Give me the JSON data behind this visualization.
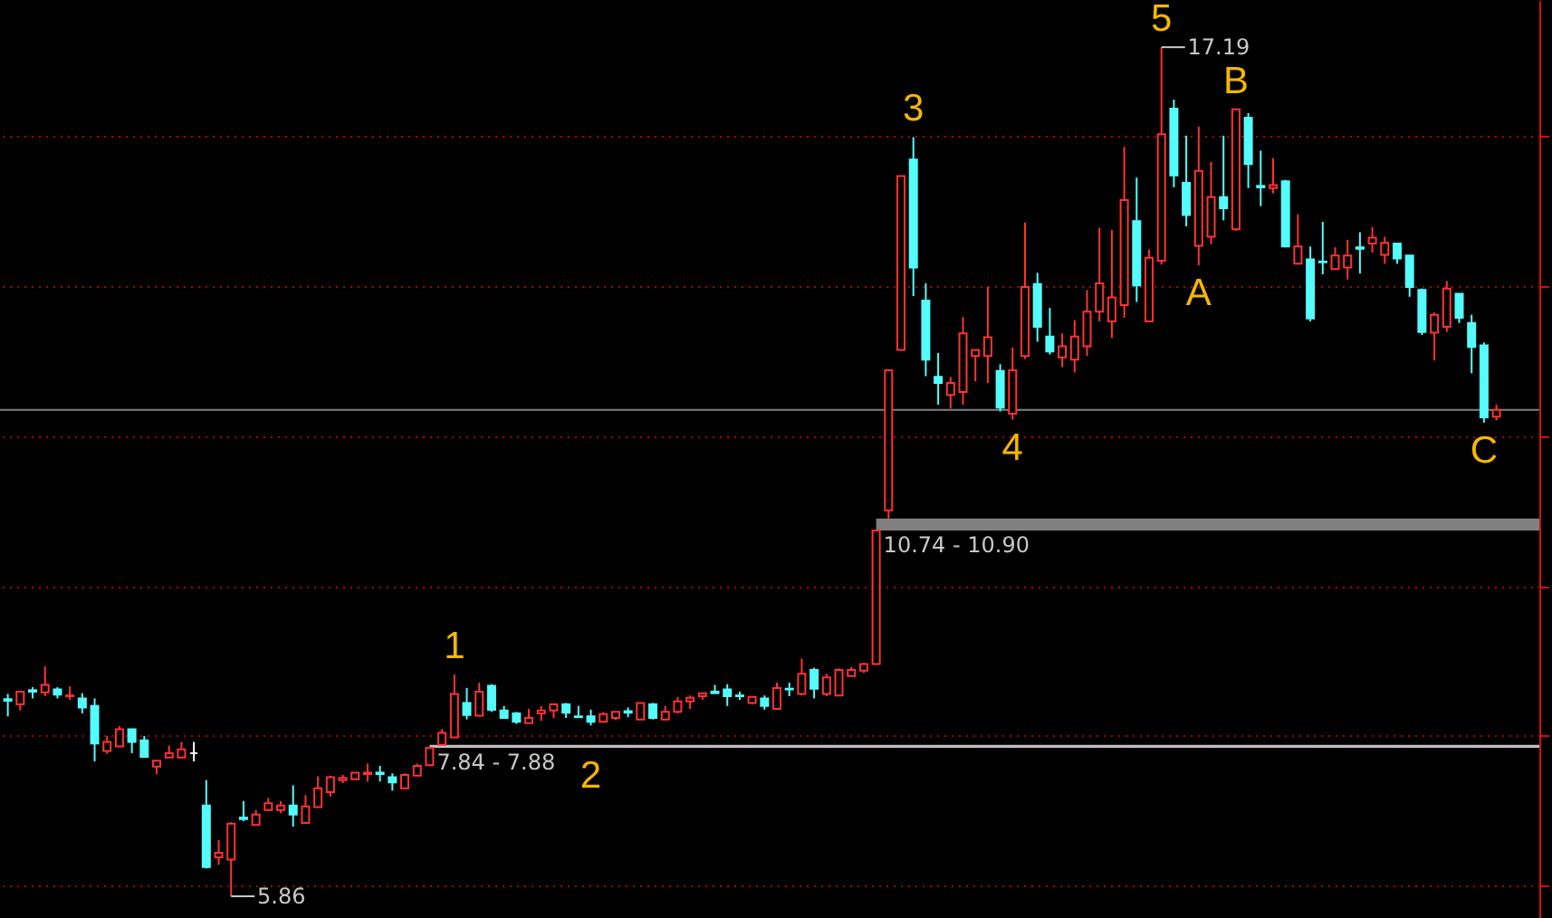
{
  "chart_data": {
    "type": "candlestick",
    "categories": [
      null,
      null,
      null,
      null,
      null,
      null,
      null,
      null,
      null,
      null,
      null,
      null,
      null,
      null,
      null,
      null,
      null,
      null,
      null,
      null,
      null,
      null,
      null,
      null,
      null,
      null,
      null,
      null,
      null,
      null,
      null,
      null,
      null,
      null,
      null,
      null,
      null,
      null,
      null,
      null,
      null,
      null,
      null,
      null,
      null,
      null,
      null,
      null,
      null,
      null,
      null,
      null,
      null,
      null,
      null,
      null,
      null,
      null,
      null,
      null,
      null,
      null,
      null,
      null,
      null,
      null,
      null,
      null,
      null,
      null,
      null,
      null,
      null,
      null,
      null,
      null,
      null,
      null,
      null,
      null,
      null,
      null,
      null,
      null,
      null,
      null,
      null,
      null,
      null,
      null,
      null,
      null,
      null,
      null,
      null,
      null,
      null,
      null,
      null,
      null,
      null,
      null,
      null,
      null,
      null,
      null,
      null,
      null,
      null,
      null,
      null,
      null,
      null,
      null,
      null,
      null,
      null,
      null,
      null,
      null,
      null
    ],
    "ohlc": [
      [
        8.49,
        8.56,
        8.26,
        8.47
      ],
      [
        8.42,
        8.59,
        8.34,
        8.59
      ],
      [
        8.61,
        8.65,
        8.5,
        8.59
      ],
      [
        8.58,
        8.93,
        8.53,
        8.68
      ],
      [
        8.62,
        8.65,
        8.5,
        8.55
      ],
      [
        8.53,
        8.66,
        8.48,
        8.54
      ],
      [
        8.5,
        8.57,
        8.3,
        8.38
      ],
      [
        8.4,
        8.5,
        7.66,
        7.9
      ],
      [
        7.8,
        8.0,
        7.76,
        7.92
      ],
      [
        7.86,
        8.13,
        7.86,
        8.09
      ],
      [
        8.09,
        8.09,
        7.77,
        7.92
      ],
      [
        7.94,
        8.0,
        7.71,
        7.72
      ],
      [
        7.59,
        7.67,
        7.49,
        7.67
      ],
      [
        7.71,
        7.87,
        7.71,
        7.77
      ],
      [
        7.71,
        7.92,
        7.71,
        7.82
      ],
      [
        7.77,
        7.92,
        7.66,
        7.77
      ],
      [
        7.07,
        7.41,
        6.23,
        6.25
      ],
      [
        6.38,
        6.61,
        6.28,
        6.44
      ],
      [
        6.35,
        6.85,
        5.86,
        6.83
      ],
      [
        6.91,
        7.13,
        6.86,
        6.89
      ],
      [
        6.81,
        7.01,
        6.81,
        6.95
      ],
      [
        7.01,
        7.17,
        7.01,
        7.1
      ],
      [
        7.01,
        7.13,
        6.97,
        7.07
      ],
      [
        7.07,
        7.34,
        6.79,
        6.95
      ],
      [
        6.84,
        7.21,
        6.84,
        7.06
      ],
      [
        7.05,
        7.46,
        7.05,
        7.3
      ],
      [
        7.25,
        7.47,
        7.19,
        7.45
      ],
      [
        7.41,
        7.48,
        7.37,
        7.44
      ],
      [
        7.42,
        7.51,
        7.42,
        7.51
      ],
      [
        7.49,
        7.63,
        7.39,
        7.51
      ],
      [
        7.51,
        7.6,
        7.39,
        7.49
      ],
      [
        7.45,
        7.5,
        7.27,
        7.38
      ],
      [
        7.3,
        7.5,
        7.3,
        7.48
      ],
      [
        7.47,
        7.63,
        7.47,
        7.6
      ],
      [
        7.61,
        7.84,
        7.61,
        7.84
      ],
      [
        7.88,
        8.09,
        7.88,
        8.04
      ],
      [
        7.98,
        8.82,
        7.98,
        8.56
      ],
      [
        8.44,
        8.64,
        8.22,
        8.28
      ],
      [
        8.27,
        8.71,
        8.27,
        8.59
      ],
      [
        8.67,
        8.69,
        8.32,
        8.35
      ],
      [
        8.34,
        8.4,
        8.24,
        8.24
      ],
      [
        8.3,
        8.32,
        8.16,
        8.19
      ],
      [
        8.17,
        8.36,
        8.17,
        8.24
      ],
      [
        8.3,
        8.4,
        8.2,
        8.34
      ],
      [
        8.34,
        8.42,
        8.24,
        8.42
      ],
      [
        8.42,
        8.44,
        8.24,
        8.31
      ],
      [
        8.26,
        8.4,
        8.25,
        8.25
      ],
      [
        8.26,
        8.35,
        8.14,
        8.19
      ],
      [
        8.19,
        8.32,
        8.19,
        8.29
      ],
      [
        8.24,
        8.32,
        8.21,
        8.32
      ],
      [
        8.33,
        8.38,
        8.25,
        8.31
      ],
      [
        8.22,
        8.44,
        8.22,
        8.44
      ],
      [
        8.42,
        8.44,
        8.22,
        8.24
      ],
      [
        8.22,
        8.4,
        8.22,
        8.32
      ],
      [
        8.32,
        8.52,
        8.3,
        8.46
      ],
      [
        8.46,
        8.54,
        8.36,
        8.51
      ],
      [
        8.53,
        8.57,
        8.48,
        8.57
      ],
      [
        8.59,
        8.68,
        8.57,
        8.57
      ],
      [
        8.62,
        8.69,
        8.4,
        8.53
      ],
      [
        8.54,
        8.59,
        8.48,
        8.53
      ],
      [
        8.44,
        8.52,
        8.42,
        8.52
      ],
      [
        8.5,
        8.54,
        8.35,
        8.4
      ],
      [
        8.36,
        8.71,
        8.36,
        8.64
      ],
      [
        8.63,
        8.71,
        8.53,
        8.62
      ],
      [
        8.56,
        9.03,
        8.54,
        8.83
      ],
      [
        8.88,
        8.91,
        8.5,
        8.63
      ],
      [
        8.56,
        8.83,
        8.53,
        8.78
      ],
      [
        8.54,
        8.9,
        8.54,
        8.88
      ],
      [
        8.8,
        8.92,
        8.8,
        8.88
      ],
      [
        8.87,
        8.98,
        8.84,
        8.96
      ],
      [
        8.96,
        10.74,
        8.95,
        10.74
      ],
      [
        11.01,
        12.88,
        10.9,
        12.88
      ],
      [
        13.15,
        15.47,
        13.15,
        15.47
      ],
      [
        15.69,
        15.99,
        13.87,
        14.25
      ],
      [
        13.81,
        14.04,
        12.8,
        13.02
      ],
      [
        12.79,
        13.11,
        12.42,
        12.71
      ],
      [
        12.55,
        12.79,
        12.37,
        12.71
      ],
      [
        12.59,
        13.59,
        12.42,
        13.37
      ],
      [
        13.07,
        13.15,
        12.73,
        13.15
      ],
      [
        13.07,
        13.99,
        12.71,
        13.32
      ],
      [
        12.87,
        12.96,
        12.33,
        12.38
      ],
      [
        12.3,
        13.18,
        12.22,
        12.88
      ],
      [
        13.07,
        14.85,
        13.03,
        13.99
      ],
      [
        14.03,
        14.18,
        13.26,
        13.46
      ],
      [
        13.33,
        13.71,
        13.09,
        13.13
      ],
      [
        13.05,
        13.37,
        12.92,
        13.2
      ],
      [
        13.02,
        13.55,
        12.85,
        13.33
      ],
      [
        13.2,
        13.95,
        13.07,
        13.66
      ],
      [
        13.66,
        14.78,
        13.53,
        14.04
      ],
      [
        13.53,
        14.75,
        13.31,
        13.85
      ],
      [
        13.75,
        15.86,
        13.58,
        15.15
      ],
      [
        14.87,
        15.45,
        13.79,
        14.01
      ],
      [
        13.53,
        14.49,
        13.53,
        14.38
      ],
      [
        14.34,
        17.19,
        14.29,
        16.03
      ],
      [
        16.37,
        16.49,
        15.32,
        15.48
      ],
      [
        15.38,
        16.01,
        14.8,
        14.95
      ],
      [
        14.54,
        16.13,
        14.28,
        15.54
      ],
      [
        14.66,
        15.66,
        14.56,
        15.19
      ],
      [
        15.19,
        16.01,
        14.88,
        15.04
      ],
      [
        14.76,
        16.36,
        14.74,
        16.36
      ],
      [
        16.25,
        16.31,
        15.31,
        15.63
      ],
      [
        15.34,
        15.81,
        15.07,
        15.32
      ],
      [
        15.31,
        15.71,
        15.24,
        15.35
      ],
      [
        15.4,
        15.42,
        14.52,
        14.53
      ],
      [
        14.3,
        14.96,
        14.3,
        14.53
      ],
      [
        14.36,
        14.53,
        13.53,
        13.57
      ],
      [
        14.33,
        14.86,
        14.16,
        14.32
      ],
      [
        14.23,
        14.52,
        14.23,
        14.41
      ],
      [
        14.25,
        14.62,
        14.09,
        14.41
      ],
      [
        14.52,
        14.72,
        14.17,
        14.5
      ],
      [
        14.57,
        14.79,
        14.45,
        14.65
      ],
      [
        14.42,
        14.66,
        14.3,
        14.58
      ],
      [
        14.57,
        14.57,
        14.3,
        14.37
      ],
      [
        14.41,
        14.41,
        13.86,
        13.99
      ],
      [
        13.95,
        13.97,
        13.35,
        13.39
      ],
      [
        13.38,
        13.65,
        13.01,
        13.62
      ],
      [
        13.46,
        14.07,
        13.39,
        13.97
      ],
      [
        13.9,
        13.9,
        13.51,
        13.58
      ],
      [
        13.51,
        13.62,
        12.84,
        13.19
      ],
      [
        13.21,
        13.25,
        12.18,
        12.25
      ],
      [
        12.26,
        12.42,
        12.21,
        12.35
      ]
    ],
    "colors": [
      "#54fcfc",
      "#ff3232",
      "#54fcfc",
      "#ff3232",
      "#54fcfc",
      "#ff3232",
      "#54fcfc",
      "#54fcfc",
      "#ff3232",
      "#ff3232",
      "#54fcfc",
      "#54fcfc",
      "#ff3232",
      "#ff3232",
      "#ff3232",
      "#ffffff",
      "#54fcfc",
      "#ff3232",
      "#ff3232",
      "#54fcfc",
      "#ff3232",
      "#ff3232",
      "#ff3232",
      "#54fcfc",
      "#ff3232",
      "#ff3232",
      "#ff3232",
      "#ff3232",
      "#ff3232",
      "#ff3232",
      "#54fcfc",
      "#54fcfc",
      "#ff3232",
      "#ff3232",
      "#ff3232",
      "#ff3232",
      "#ff3232",
      "#54fcfc",
      "#ff3232",
      "#54fcfc",
      "#54fcfc",
      "#54fcfc",
      "#ff3232",
      "#ff3232",
      "#ff3232",
      "#54fcfc",
      "#54fcfc",
      "#54fcfc",
      "#ff3232",
      "#ff3232",
      "#54fcfc",
      "#ff3232",
      "#54fcfc",
      "#ff3232",
      "#ff3232",
      "#ff3232",
      "#ff3232",
      "#54fcfc",
      "#54fcfc",
      "#54fcfc",
      "#ff3232",
      "#54fcfc",
      "#ff3232",
      "#54fcfc",
      "#ff3232",
      "#54fcfc",
      "#ff3232",
      "#ff3232",
      "#ff3232",
      "#ff3232",
      "#ff3232",
      "#ff3232",
      "#ff3232",
      "#54fcfc",
      "#54fcfc",
      "#54fcfc",
      "#ff3232",
      "#ff3232",
      "#ff3232",
      "#ff3232",
      "#54fcfc",
      "#ff3232",
      "#ff3232",
      "#54fcfc",
      "#54fcfc",
      "#ff3232",
      "#ff3232",
      "#ff3232",
      "#ff3232",
      "#ff3232",
      "#ff3232",
      "#54fcfc",
      "#ff3232",
      "#ff3232",
      "#54fcfc",
      "#54fcfc",
      "#ff3232",
      "#ff3232",
      "#54fcfc",
      "#ff3232",
      "#54fcfc",
      "#54fcfc",
      "#ff3232",
      "#54fcfc",
      "#ff3232",
      "#54fcfc",
      "#54fcfc",
      "#ff3232",
      "#ff3232",
      "#54fcfc",
      "#ff3232",
      "#ff3232",
      "#54fcfc",
      "#54fcfc",
      "#54fcfc",
      "#ff3232",
      "#ff3232",
      "#54fcfc",
      "#54fcfc",
      "#54fcfc",
      "#ff3232"
    ],
    "value_labels": [
      null,
      null,
      null,
      null,
      null,
      null,
      null,
      null,
      null,
      null,
      null,
      null,
      null,
      null,
      null,
      null,
      null,
      null,
      "5.86",
      null,
      null,
      null,
      null,
      null,
      null,
      null,
      null,
      null,
      null,
      null,
      null,
      null,
      null,
      null,
      null,
      null,
      null,
      null,
      null,
      null,
      null,
      null,
      null,
      null,
      null,
      null,
      null,
      null,
      null,
      null,
      null,
      null,
      null,
      null,
      null,
      null,
      null,
      null,
      null,
      null,
      null,
      null,
      null,
      null,
      null,
      null,
      null,
      null,
      null,
      null,
      null,
      null,
      null,
      null,
      null,
      null,
      null,
      null,
      null,
      null,
      null,
      null,
      null,
      null,
      null,
      null,
      null,
      null,
      null,
      null,
      null,
      null,
      null,
      "17.19",
      null,
      null,
      null,
      null,
      null,
      null,
      null,
      null,
      null,
      null,
      null,
      null,
      null,
      null,
      null,
      null,
      null,
      null,
      null,
      null,
      null,
      null,
      null,
      null,
      null,
      null,
      null
    ],
    "ylim": [
      5.57,
      17.82
    ],
    "yticks": [
      {
        "value": 6,
        "label": null
      },
      {
        "value": 8,
        "label": null
      },
      {
        "value": 10,
        "label": null
      },
      {
        "value": 12,
        "label": null
      },
      {
        "value": 14,
        "label": null
      },
      {
        "value": 16,
        "label": null
      }
    ],
    "grid": "y",
    "ref_lines": [
      {
        "axis": "y",
        "value": 12.35,
        "color": "#808080"
      }
    ],
    "bands": [
      {
        "axis": "y",
        "from": 7.84,
        "to": 7.88,
        "label": "7.84 - 7.88",
        "color": "#c0c0c0"
      },
      {
        "axis": "y",
        "from": 10.74,
        "to": 10.9,
        "label": "10.74 - 10.90",
        "color": "#808080"
      }
    ],
    "annotations": [
      {
        "text": "1",
        "y": 8.82
      },
      {
        "text": "2",
        "y": 8.14
      },
      {
        "text": "3",
        "y": 15.99
      },
      {
        "text": "4",
        "y": 12.22
      },
      {
        "text": "5",
        "y": 17.19
      },
      {
        "text": "A",
        "y": 14.28
      },
      {
        "text": "B",
        "y": 16.36
      },
      {
        "text": "C",
        "y": 12.18
      }
    ]
  }
}
